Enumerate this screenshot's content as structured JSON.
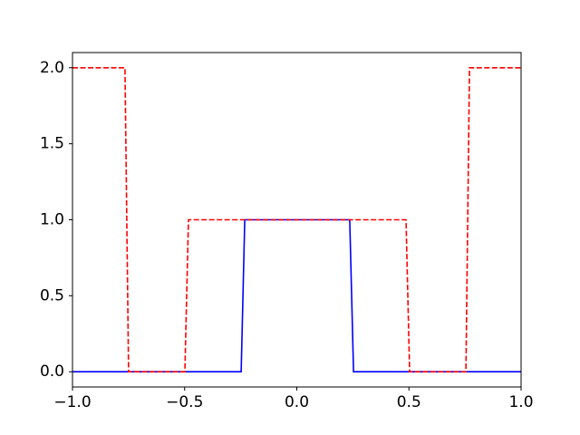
{
  "chart_data": {
    "type": "line",
    "series": [
      {
        "color": "#0000ff",
        "linestyle": "solid",
        "x": [
          -1,
          -0.248,
          -0.232,
          0.236,
          0.253,
          1
        ],
        "values": [
          0,
          0,
          1,
          1,
          0,
          0
        ]
      },
      {
        "color": "#ff0000",
        "linestyle": "dashed",
        "x": [
          -1,
          -0.766,
          -0.75,
          -0.499,
          -0.483,
          0.487,
          0.503,
          0.754,
          0.77,
          1
        ],
        "values": [
          2,
          2,
          0,
          0,
          1,
          1,
          0,
          0,
          2,
          2
        ]
      }
    ],
    "xlim": [
      -1,
      1
    ],
    "xticks": [
      {
        "value": -1,
        "label": "−1.0"
      },
      {
        "value": -0.5,
        "label": "−0.5"
      },
      {
        "value": 0,
        "label": "0.0"
      },
      {
        "value": 0.5,
        "label": "0.5"
      },
      {
        "value": 1,
        "label": "1.0"
      }
    ],
    "ylim": [
      -0.1,
      2.1
    ],
    "yticks": [
      {
        "value": 0,
        "label": "0.0"
      },
      {
        "value": 0.5,
        "label": "0.5"
      },
      {
        "value": 1,
        "label": "1.0"
      },
      {
        "value": 1.5,
        "label": "1.5"
      },
      {
        "value": 2,
        "label": "2.0"
      }
    ],
    "grid": false
  }
}
